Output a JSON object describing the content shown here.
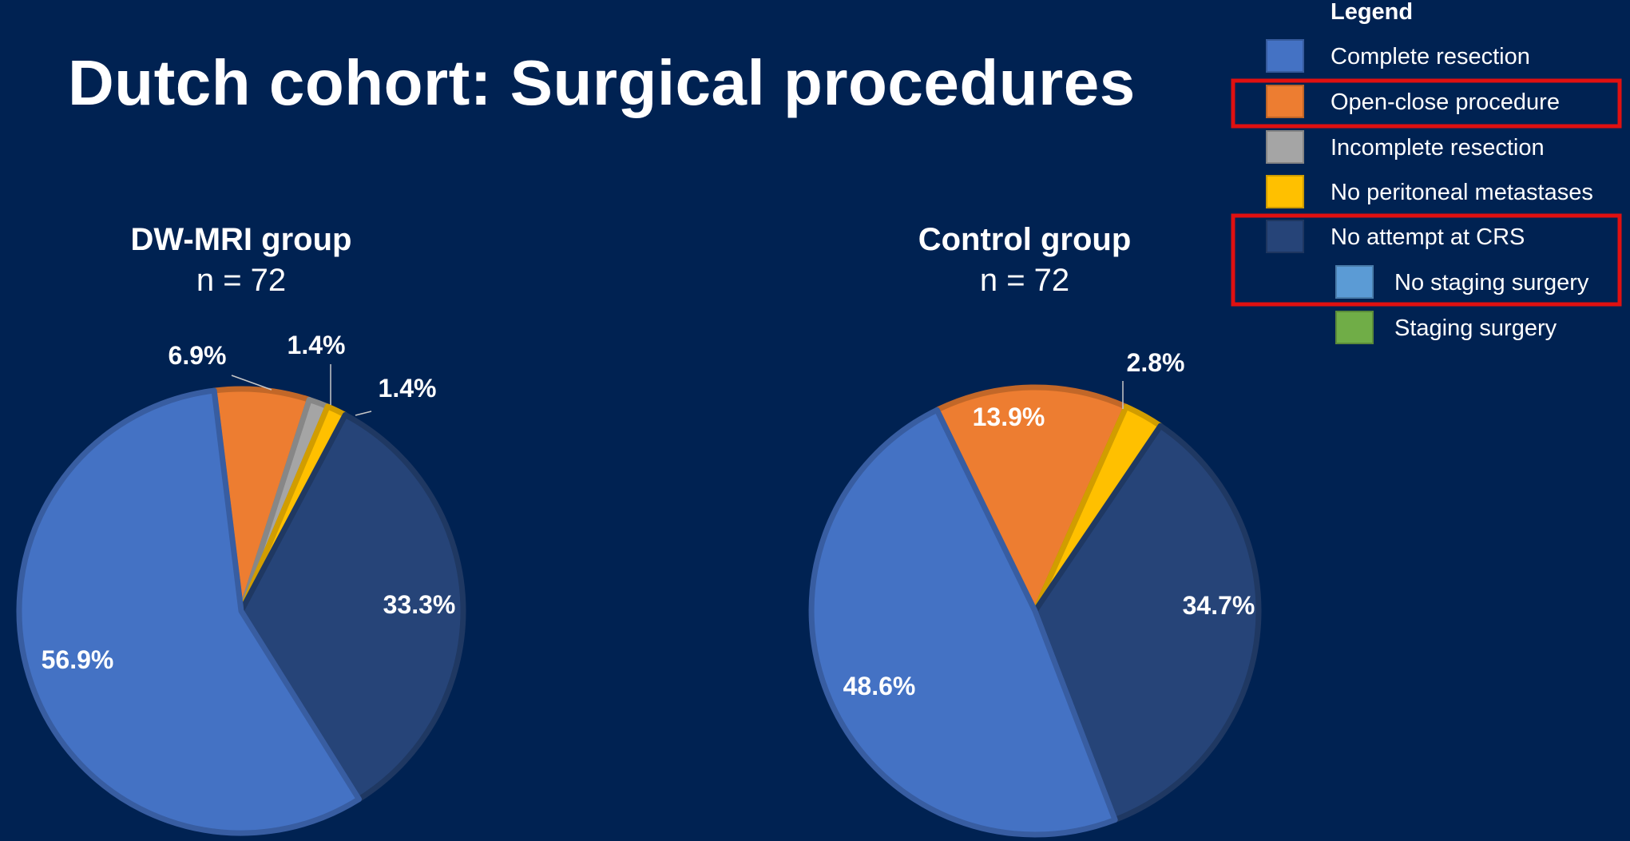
{
  "slide": {
    "title": "Dutch cohort: Surgical procedures",
    "background": "#002252"
  },
  "legend": {
    "title": "Legend",
    "items": [
      {
        "label": "Complete resection",
        "color": "#4472C4",
        "indent": false,
        "highlight": false
      },
      {
        "label": "Open-close procedure",
        "color": "#ED7D31",
        "indent": false,
        "highlight": true
      },
      {
        "label": "Incomplete resection",
        "color": "#A5A5A5",
        "indent": false,
        "highlight": false
      },
      {
        "label": "No peritoneal metastases",
        "color": "#FFC000",
        "indent": false,
        "highlight": false
      },
      {
        "label": "No attempt at CRS",
        "color": "#264478",
        "indent": false,
        "highlight": true
      },
      {
        "label": "No staging surgery",
        "color": "#5B9BD5",
        "indent": true,
        "highlight": true
      },
      {
        "label": "Staging surgery",
        "color": "#70AD47",
        "indent": true,
        "highlight": false
      }
    ],
    "highlight_color": "#E01010"
  },
  "chart_data": [
    {
      "type": "pie",
      "title": "DW-MRI group",
      "subtitle": "n = 72",
      "slices": [
        {
          "category": "Open-close procedure",
          "value": 6.9,
          "label": "6.9%",
          "color": "#ED7D31"
        },
        {
          "category": "Incomplete resection",
          "value": 1.4,
          "label": "1.4%",
          "color": "#A5A5A5"
        },
        {
          "category": "No peritoneal metastases",
          "value": 1.4,
          "label": "1.4%",
          "color": "#FFC000"
        },
        {
          "category": "No attempt at CRS",
          "value": 33.3,
          "label": "33.3%",
          "color": "#264478"
        },
        {
          "category": "Complete resection",
          "value": 56.9,
          "label": "56.9%",
          "color": "#4472C4"
        }
      ]
    },
    {
      "type": "pie",
      "title": "Control group",
      "subtitle": "n = 72",
      "slices": [
        {
          "category": "Open-close procedure",
          "value": 13.9,
          "label": "13.9%",
          "color": "#ED7D31"
        },
        {
          "category": "No peritoneal metastases",
          "value": 2.8,
          "label": "2.8%",
          "color": "#FFC000"
        },
        {
          "category": "No attempt at CRS",
          "value": 34.7,
          "label": "34.7%",
          "color": "#264478"
        },
        {
          "category": "Complete resection",
          "value": 48.6,
          "label": "48.6%",
          "color": "#4472C4"
        }
      ]
    }
  ]
}
